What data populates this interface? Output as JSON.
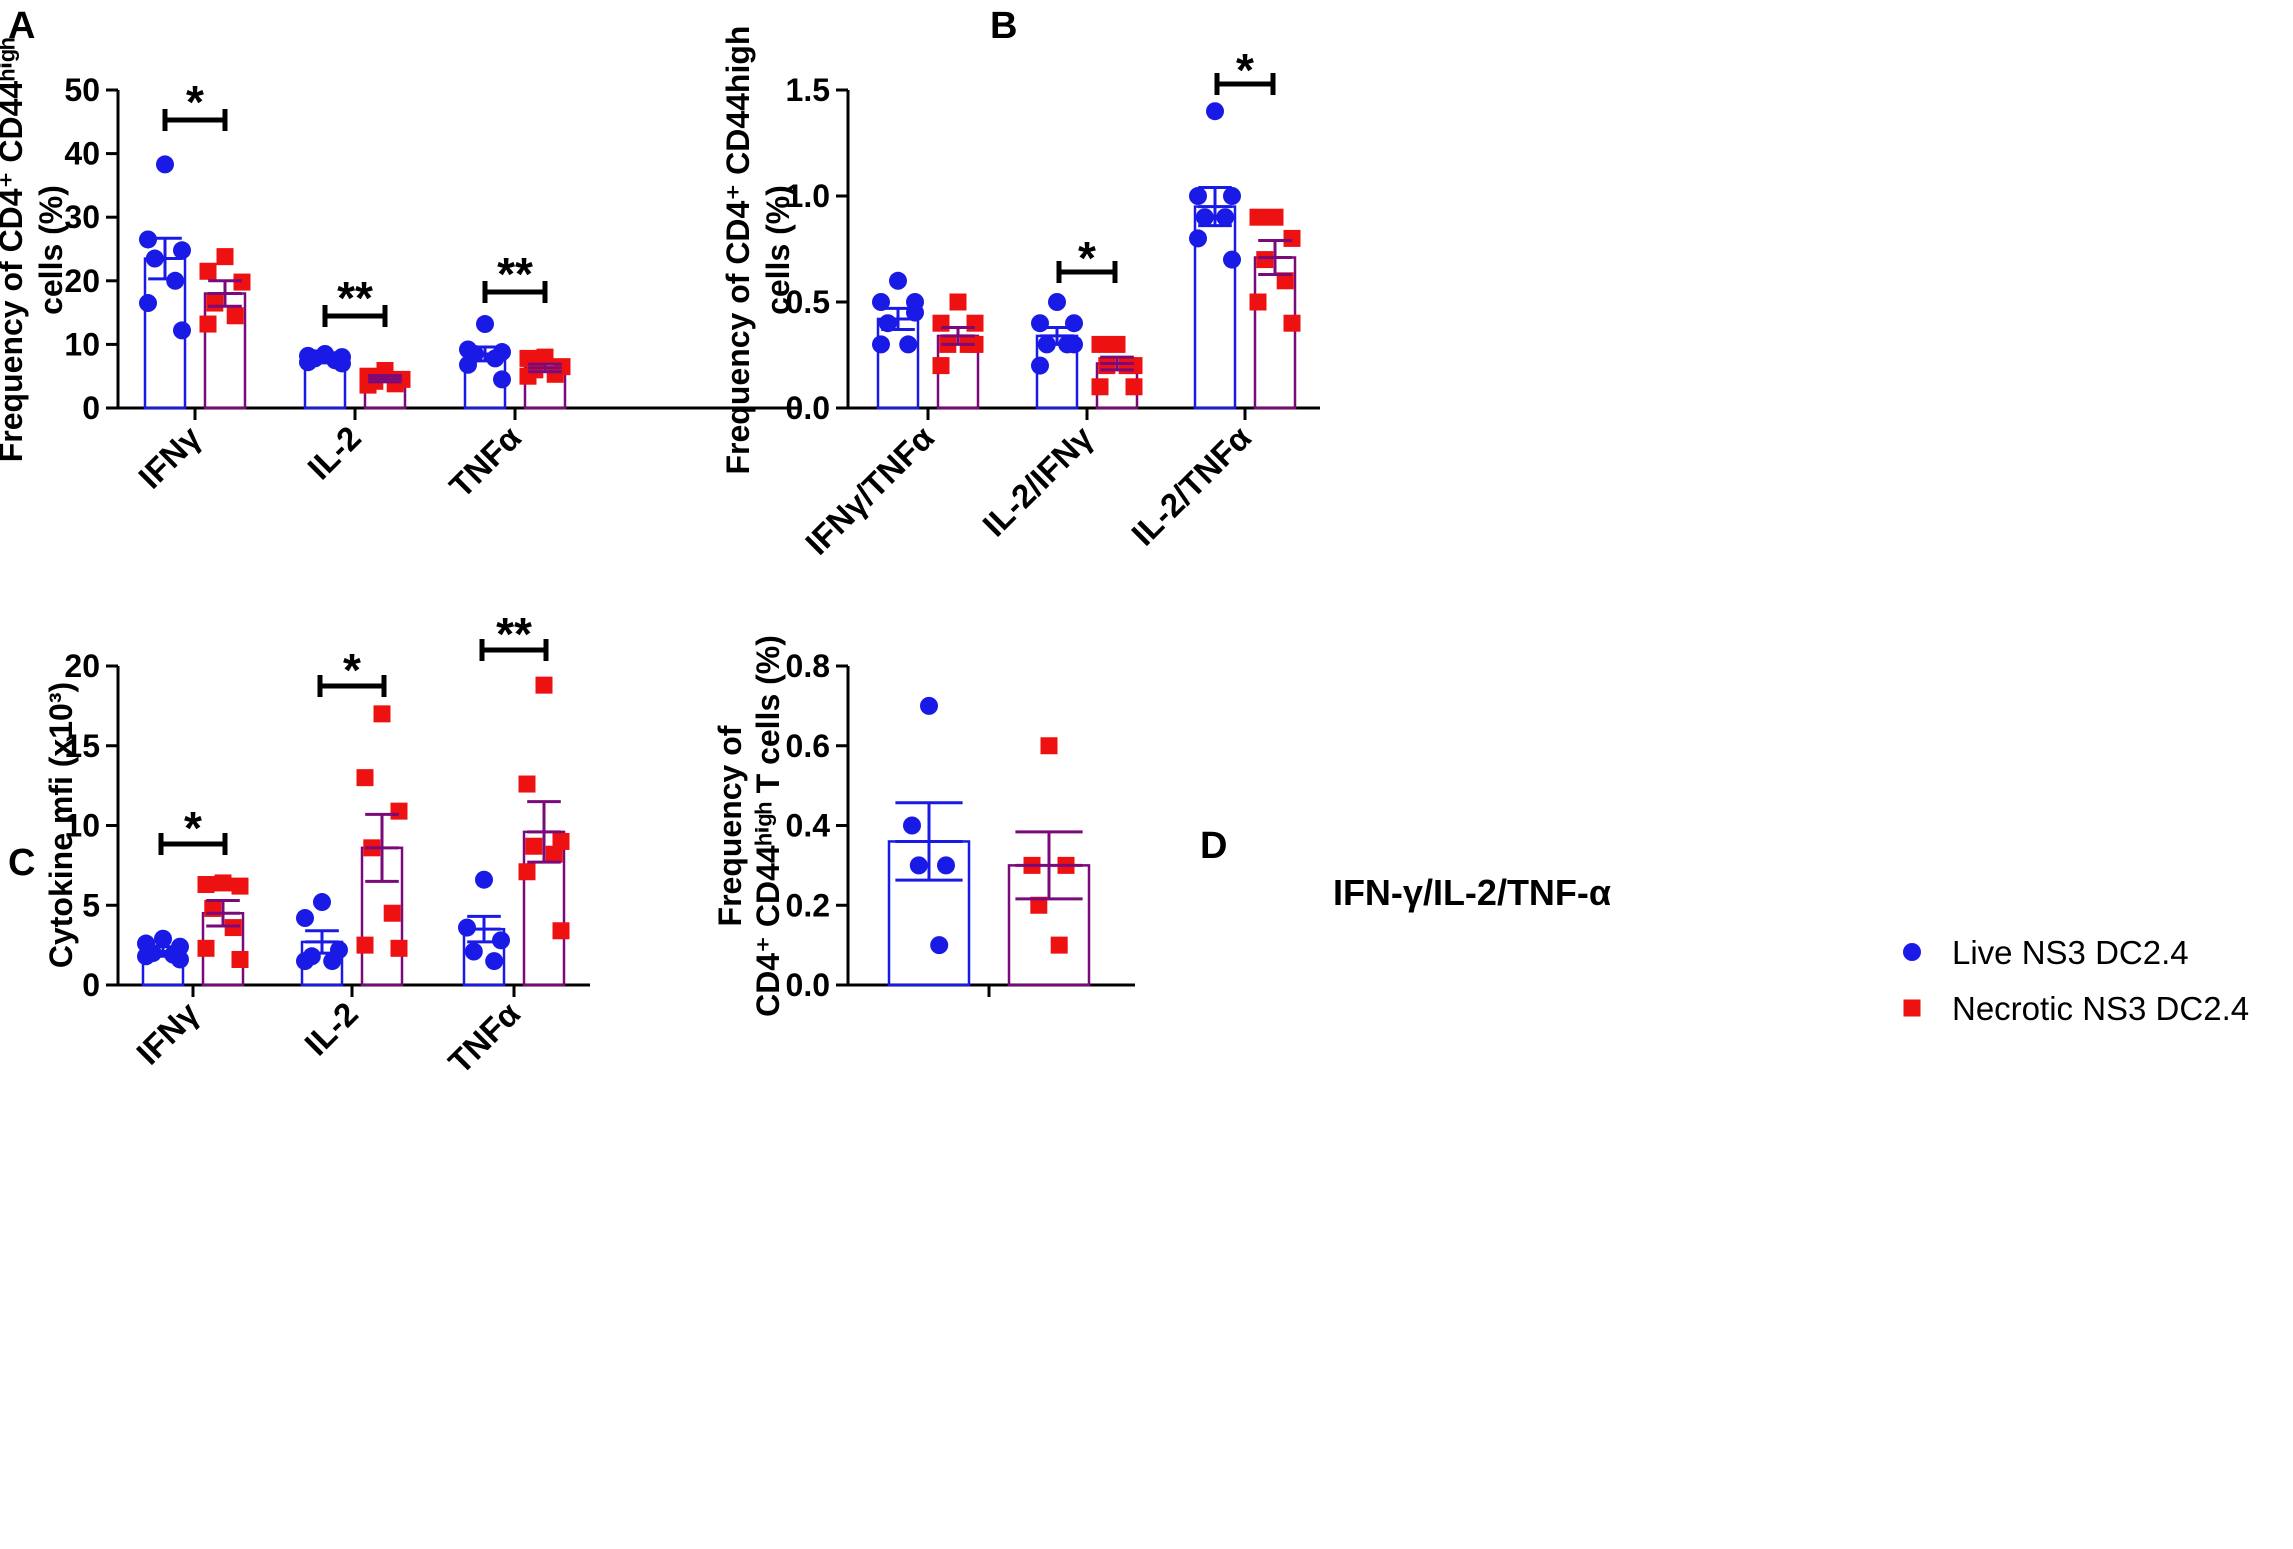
{
  "colors": {
    "live": "#1a1ae6",
    "necrotic": "#ee1111",
    "necrotic_bar": "#7a0a7a",
    "axis": "#000000"
  },
  "legend": {
    "items": [
      {
        "label": "Live NS3 DC2.4",
        "marker": "circle",
        "color": "#1a1ae6"
      },
      {
        "label": "Necrotic NS3 DC2.4",
        "marker": "square",
        "color": "#ee1111"
      }
    ]
  },
  "chart_data": [
    {
      "panel": "A",
      "type": "bar",
      "title": "",
      "ylabel_lines": [
        "Frequency of CD4⁺ CD44ʰⁱᵍʰ",
        "cells (%)"
      ],
      "ylim": [
        0,
        50
      ],
      "yticks": [
        "0",
        "10",
        "20",
        "30",
        "40",
        "50"
      ],
      "ytick_values": [
        0,
        10,
        20,
        30,
        40,
        50
      ],
      "categories": [
        "IFNγ",
        "IL-2",
        "TNFα"
      ],
      "significance": [
        "*",
        "**",
        "**"
      ],
      "series": [
        {
          "name": "Live NS3 DC2.4",
          "means": [
            23.5,
            7.6,
            8.5
          ],
          "sem": [
            3.2,
            0.5,
            1.1
          ],
          "points": [
            [
              38.3,
              26.5,
              24.8,
              23.5,
              20.0,
              16.5,
              12.2
            ],
            [
              8.5,
              8.2,
              8.0,
              7.8,
              7.5,
              7.2,
              7.0
            ],
            [
              13.2,
              9.2,
              8.8,
              8.5,
              7.8,
              6.8,
              4.5
            ]
          ]
        },
        {
          "name": "Necrotic NS3 DC2.4",
          "means": [
            18.0,
            4.6,
            6.3
          ],
          "sem": [
            2.0,
            0.5,
            0.6
          ],
          "points": [
            [
              23.8,
              21.5,
              19.8,
              16.5,
              14.5,
              13.2
            ],
            [
              5.9,
              5.0,
              4.5,
              4.2,
              3.8,
              3.6
            ],
            [
              8.0,
              7.8,
              6.5,
              6.0,
              5.3,
              5.0
            ]
          ]
        }
      ]
    },
    {
      "panel": "B",
      "type": "bar",
      "title": "",
      "ylabel_lines": [
        "Frequency of CD4⁺ CD44high",
        "cells (%)"
      ],
      "ylim": [
        0,
        1.5
      ],
      "yticks": [
        "0.0",
        "0.5",
        "1.0",
        "1.5"
      ],
      "ytick_values": [
        0,
        0.5,
        1.0,
        1.5
      ],
      "categories": [
        "IFNγ/TNFα",
        "IL-2/IFNγ",
        "IL-2/TNFα"
      ],
      "significance": [
        "",
        "*",
        "*"
      ],
      "series": [
        {
          "name": "Live NS3 DC2.4",
          "means": [
            0.42,
            0.34,
            0.95
          ],
          "sem": [
            0.05,
            0.04,
            0.09
          ],
          "points": [
            [
              0.6,
              0.5,
              0.45,
              0.4,
              0.3,
              0.3,
              0.5
            ],
            [
              0.5,
              0.4,
              0.4,
              0.3,
              0.3,
              0.2,
              0.3
            ],
            [
              1.4,
              1.0,
              1.0,
              0.9,
              0.9,
              0.8,
              0.7
            ]
          ]
        },
        {
          "name": "Necrotic NS3 DC2.4",
          "means": [
            0.34,
            0.21,
            0.71
          ],
          "sem": [
            0.04,
            0.03,
            0.08
          ],
          "points": [
            [
              0.5,
              0.4,
              0.3,
              0.3,
              0.3,
              0.2,
              0.4
            ],
            [
              0.3,
              0.3,
              0.2,
              0.2,
              0.2,
              0.1,
              0.1
            ],
            [
              0.9,
              0.9,
              0.8,
              0.7,
              0.6,
              0.5,
              0.4
            ]
          ]
        }
      ]
    },
    {
      "panel": "C",
      "type": "bar",
      "title": "",
      "ylabel_lines": [
        "Cytokine mfi (x10³)"
      ],
      "ylim": [
        0,
        20
      ],
      "yticks": [
        "0",
        "5",
        "10",
        "15",
        "20"
      ],
      "ytick_values": [
        0,
        5,
        10,
        15,
        20
      ],
      "categories": [
        "IFNγ",
        "IL-2",
        "TNFα"
      ],
      "significance": [
        "*",
        "*",
        "**"
      ],
      "series": [
        {
          "name": "Live NS3 DC2.4",
          "means": [
            2.1,
            2.7,
            3.5
          ],
          "sem": [
            0.3,
            0.7,
            0.8
          ],
          "points": [
            [
              2.9,
              2.6,
              2.4,
              2.0,
              1.9,
              1.8,
              1.6
            ],
            [
              5.2,
              4.2,
              2.2,
              1.8,
              1.5,
              1.5
            ],
            [
              6.6,
              3.6,
              2.8,
              2.1,
              1.5
            ]
          ]
        },
        {
          "name": "Necrotic NS3 DC2.4",
          "means": [
            4.5,
            8.6,
            9.6
          ],
          "sem": [
            0.8,
            2.1,
            1.9
          ],
          "points": [
            [
              6.4,
              6.3,
              6.2,
              4.8,
              3.6,
              2.3,
              1.6
            ],
            [
              17.0,
              13.0,
              10.9,
              8.6,
              4.5,
              2.5,
              2.3
            ],
            [
              18.8,
              12.6,
              9.0,
              8.7,
              8.2,
              7.1,
              3.4
            ]
          ]
        }
      ]
    },
    {
      "panel": "D",
      "type": "bar",
      "title": "IFN-γ/IL-2/TNF-α",
      "ylabel_lines": [
        "Frequency of",
        "CD4⁺ CD44ʰⁱᵍʰ T cells (%)"
      ],
      "ylim": [
        0,
        0.8
      ],
      "yticks": [
        "0.0",
        "0.2",
        "0.4",
        "0.6",
        "0.8"
      ],
      "ytick_values": [
        0,
        0.2,
        0.4,
        0.6,
        0.8
      ],
      "categories": [
        ""
      ],
      "significance": [
        ""
      ],
      "series": [
        {
          "name": "Live NS3 DC2.4",
          "means": [
            0.36
          ],
          "sem": [
            0.097
          ],
          "points": [
            [
              0.7,
              0.4,
              0.3,
              0.3,
              0.1
            ]
          ]
        },
        {
          "name": "Necrotic NS3 DC2.4",
          "means": [
            0.3
          ],
          "sem": [
            0.084
          ],
          "points": [
            [
              0.6,
              0.3,
              0.3,
              0.2,
              0.1
            ]
          ]
        }
      ]
    }
  ]
}
